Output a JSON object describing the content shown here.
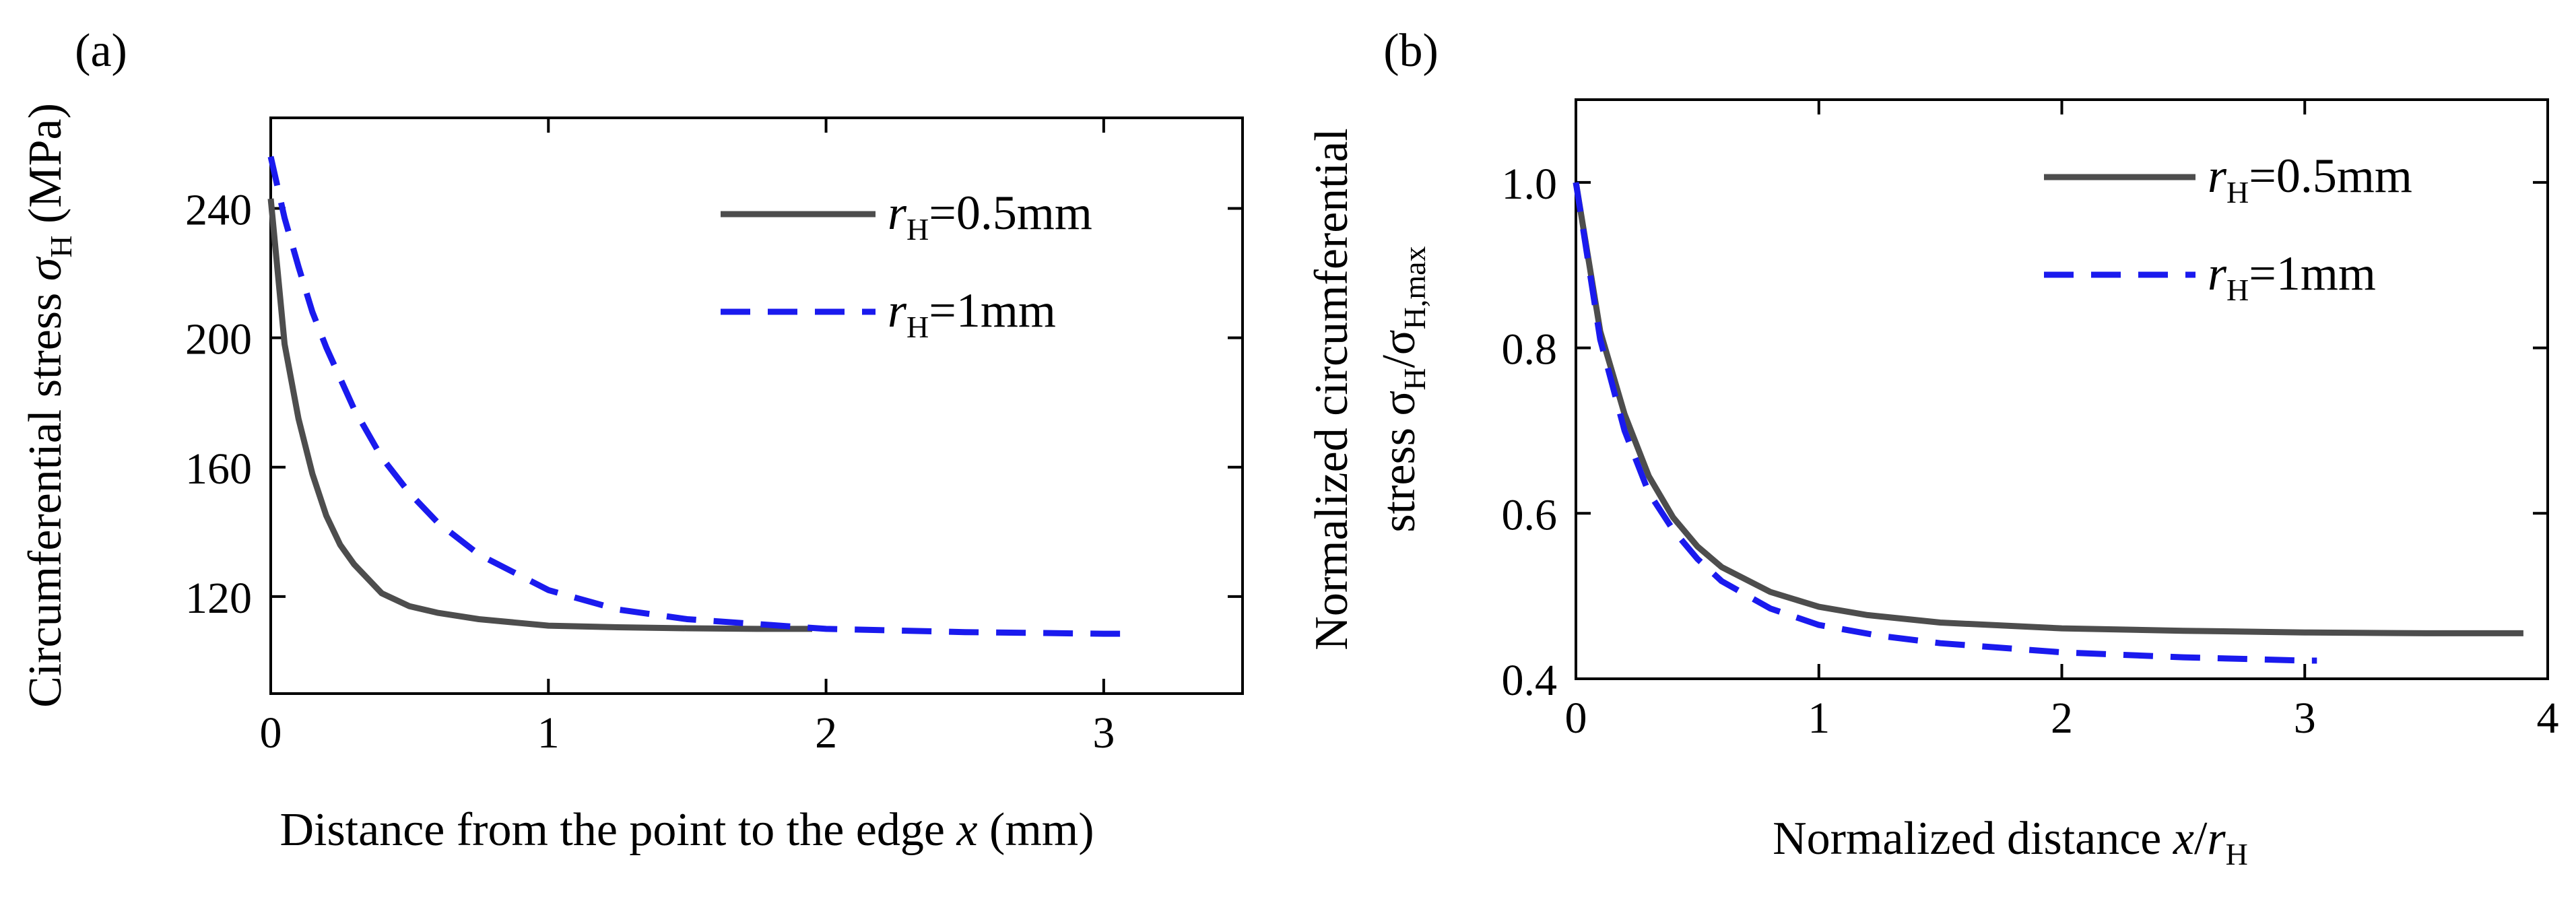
{
  "chart_data": [
    {
      "type": "line",
      "panel_label": "(a)",
      "xlabel": {
        "main": "Distance from the point to the edge ",
        "var": "x",
        "unit": " (mm)"
      },
      "ylabel": {
        "main": "Circumferential stress ",
        "sym": "σ",
        "sub": "H",
        "unit": " (MPa)"
      },
      "xlim": [
        0,
        3.5
      ],
      "ylim": [
        90,
        268
      ],
      "xticks": [
        0,
        1,
        2,
        3
      ],
      "yticks": [
        120,
        160,
        200,
        240
      ],
      "legend_position": "top-right",
      "series": [
        {
          "name": "r_H=0.5mm",
          "legend": {
            "var": "r",
            "sub": "H",
            "rest": "=0.5mm"
          },
          "color": "#4d4d4d",
          "dash": "solid",
          "x": [
            0,
            0.05,
            0.1,
            0.15,
            0.2,
            0.25,
            0.3,
            0.4,
            0.5,
            0.6,
            0.75,
            1.0,
            1.25,
            1.5,
            1.75,
            1.95
          ],
          "y": [
            243,
            198,
            175,
            158,
            145,
            136,
            130,
            121,
            117,
            115,
            113,
            111,
            110.5,
            110.2,
            110,
            110
          ]
        },
        {
          "name": "r_H=1mm",
          "legend": {
            "var": "r",
            "sub": "H",
            "rest": "=1mm"
          },
          "color": "#1a1aee",
          "dash": "dashed",
          "x": [
            0,
            0.05,
            0.1,
            0.15,
            0.2,
            0.3,
            0.4,
            0.5,
            0.6,
            0.75,
            1.0,
            1.25,
            1.5,
            2.0,
            2.5,
            3.0,
            3.1
          ],
          "y": [
            256,
            237,
            222,
            208,
            197,
            178,
            163,
            152,
            143,
            133,
            122,
            116,
            113,
            110,
            109,
            108.5,
            108.5
          ]
        }
      ]
    },
    {
      "type": "line",
      "panel_label": "(b)",
      "xlabel": {
        "main": "Normalized distance ",
        "var": "x",
        "slash": "/",
        "var2": "r",
        "sub": "H"
      },
      "ylabel": {
        "line1": "Normalized circumferential",
        "line2": "stress ",
        "sym1": "σ",
        "sub1": "H",
        "slash": "/",
        "sym2": "σ",
        "sub2": "H,max"
      },
      "xlim": [
        0,
        4
      ],
      "ylim": [
        0.4,
        1.1
      ],
      "xticks": [
        0,
        1,
        2,
        3,
        4
      ],
      "yticks": [
        0.4,
        0.6,
        0.8,
        1.0
      ],
      "ytick_labels": [
        "0.4",
        "0.6",
        "0.8",
        "1.0"
      ],
      "legend_position": "top-right",
      "series": [
        {
          "name": "r_H=0.5mm",
          "legend": {
            "var": "r",
            "sub": "H",
            "rest": "=0.5mm"
          },
          "color": "#4d4d4d",
          "dash": "solid",
          "x": [
            0,
            0.1,
            0.2,
            0.3,
            0.4,
            0.5,
            0.6,
            0.8,
            1.0,
            1.2,
            1.5,
            2.0,
            2.5,
            3.0,
            3.5,
            3.9
          ],
          "y": [
            1.0,
            0.82,
            0.72,
            0.645,
            0.595,
            0.56,
            0.535,
            0.505,
            0.487,
            0.477,
            0.468,
            0.461,
            0.458,
            0.456,
            0.455,
            0.455
          ]
        },
        {
          "name": "r_H=1mm",
          "legend": {
            "var": "r",
            "sub": "H",
            "rest": "=1mm"
          },
          "color": "#1a1aee",
          "dash": "dashed",
          "x": [
            0,
            0.1,
            0.2,
            0.3,
            0.4,
            0.5,
            0.6,
            0.8,
            1.0,
            1.25,
            1.5,
            2.0,
            2.5,
            3.0,
            3.05
          ],
          "y": [
            1.0,
            0.81,
            0.7,
            0.625,
            0.58,
            0.545,
            0.518,
            0.485,
            0.465,
            0.452,
            0.443,
            0.432,
            0.426,
            0.422,
            0.422
          ]
        }
      ]
    }
  ]
}
